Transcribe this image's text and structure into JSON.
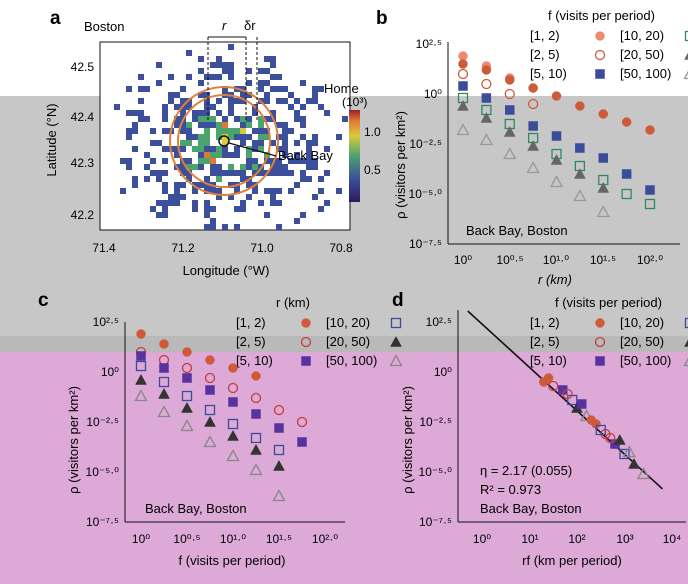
{
  "panels": [
    {
      "id": "a",
      "letter": "a"
    },
    {
      "id": "b",
      "letter": "b"
    },
    {
      "id": "c",
      "letter": "c"
    },
    {
      "id": "d",
      "letter": "d"
    }
  ],
  "colors": {
    "series_light": "#f08a6e",
    "series_mid": "#ce5a3c",
    "series_green": "#2e8a5e",
    "series_red": "#c63c3c",
    "series_gray": "#666666",
    "series_purple": "#5a32a0",
    "series_blue": "#3a4d9a",
    "series_lightgray": "#999999",
    "series_darkgray": "#333333",
    "ring": "#e0803a"
  },
  "map": {
    "city": "Boston",
    "xlabel": "Longitude (°W)",
    "ylabel": "Latitude (°N)",
    "xticks": [
      "71.4",
      "71.2",
      "71.0",
      "70.8"
    ],
    "yticks": [
      "42.5",
      "42.4",
      "42.3",
      "42.2"
    ],
    "r_label": "r",
    "dr_label": "δr",
    "annotation": "Back Bay",
    "colorbar_title": "Home",
    "colorbar_unit": "(10³)",
    "colorbar_ticks": [
      "1.0",
      "0.5"
    ],
    "colorbar_ticks_mid": "1.0"
  },
  "chart_data": [
    {
      "panel": "b",
      "type": "scatter",
      "title": "f (visits per period)",
      "xlabel": "r (km)",
      "ylabel": "ρ (visitors per km²)",
      "location_label": "Back Bay, Boston",
      "xlim_log10": [
        0,
        2
      ],
      "ylim_log10": [
        -7.5,
        2.5
      ],
      "xticks": [
        "10⁰",
        "10⁰·⁵",
        "10¹·⁰",
        "10¹·⁵",
        "10²·⁰"
      ],
      "yticks": [
        "10²·⁵",
        "10⁰",
        "10⁻²·⁵",
        "10⁻⁵·⁰",
        "10⁻⁷·⁵"
      ],
      "legend": [
        "[1, 2)",
        "[2, 5)",
        "[5, 10)",
        "[10, 20)",
        "[20, 50)",
        "[50, 100)"
      ],
      "x_log10": [
        0,
        0.25,
        0.5,
        0.75,
        1.0,
        1.25,
        1.5,
        1.75,
        2.0
      ],
      "series": [
        {
          "name": "[1, 2)",
          "marker": "circle-filled",
          "color": "#f08a6e",
          "y_log10": [
            1.9,
            1.4,
            0.8,
            0.3
          ]
        },
        {
          "name": "[2, 5)",
          "marker": "circle-open",
          "color": "#ce5a3c",
          "y_log10": [
            1.0,
            0.5,
            0.0,
            -0.5
          ]
        },
        {
          "name": "[5, 10)",
          "marker": "square-filled",
          "color": "#3a4d9a",
          "y_log10": [
            0.4,
            -0.2,
            -0.8,
            -1.6,
            -2.1,
            -2.7,
            -3.2,
            -4.0,
            -4.8
          ]
        },
        {
          "name": "[10, 20)",
          "marker": "square-open",
          "color": "#2e8a5e",
          "y_log10": [
            -0.2,
            -0.8,
            -1.5,
            -2.2,
            -3.0,
            -3.6,
            -4.3,
            -5.0,
            -5.5
          ]
        },
        {
          "name": "[20, 50)",
          "marker": "triangle-filled",
          "color": "#666666",
          "y_log10": [
            -0.6,
            -1.2,
            -1.9,
            -2.6,
            -3.3,
            -4.0,
            -4.7
          ]
        },
        {
          "name": "[50, 100)",
          "marker": "triangle-open",
          "color": "#999999",
          "y_log10": [
            -1.8,
            -2.3,
            -3.0,
            -3.7,
            -4.4,
            -5.1,
            -5.9
          ]
        }
      ],
      "upper_group": {
        "x_log10": [
          0,
          0.25,
          0.5,
          0.75,
          1.0,
          1.25,
          1.5,
          1.75,
          2.0
        ],
        "y_log10": [
          1.5,
          1.2,
          0.7,
          0.3,
          -0.1,
          -0.6,
          -1.0,
          -1.4,
          -1.8
        ],
        "color": "#ce5a3c"
      }
    },
    {
      "panel": "c",
      "type": "scatter",
      "title": "r (km)",
      "xlabel": "f (visits per period)",
      "ylabel": "ρ (visitors per km²)",
      "location_label": "Back Bay, Boston",
      "xlim_log10": [
        0,
        2
      ],
      "ylim_log10": [
        -7.5,
        2.5
      ],
      "xticks": [
        "10⁰",
        "10⁰·⁵",
        "10¹·⁰",
        "10¹·⁵",
        "10²·⁰"
      ],
      "yticks": [
        "10²·⁵",
        "10⁰",
        "10⁻²·⁵",
        "10⁻⁵·⁰",
        "10⁻⁷·⁵"
      ],
      "legend": [
        "[1, 2)",
        "[2, 5)",
        "[5, 10)",
        "[10, 20)",
        "[20, 50)",
        "[50, 100)"
      ],
      "x_log10": [
        0,
        0.25,
        0.5,
        0.75,
        1.0,
        1.25,
        1.5,
        1.75,
        2.0
      ],
      "series": [
        {
          "name": "[1, 2)",
          "marker": "circle-filled",
          "color": "#ce5a3c",
          "y_log10": [
            1.9,
            1.4,
            1.0,
            0.6,
            0.2,
            -0.2
          ]
        },
        {
          "name": "[2, 5)",
          "marker": "circle-open",
          "color": "#c63c3c",
          "y_log10": [
            1.0,
            0.6,
            0.2,
            -0.3,
            -0.8,
            -1.3,
            -1.9,
            -2.5
          ]
        },
        {
          "name": "[5, 10)",
          "marker": "square-filled",
          "color": "#5a32a0",
          "y_log10": [
            0.8,
            0.2,
            -0.3,
            -0.9,
            -1.5,
            -2.1,
            -2.8,
            -3.5
          ]
        },
        {
          "name": "[10, 20)",
          "marker": "square-open",
          "color": "#3a4d9a",
          "y_log10": [
            0.3,
            -0.5,
            -1.2,
            -1.9,
            -2.6,
            -3.3,
            -3.9
          ]
        },
        {
          "name": "[20, 50)",
          "marker": "triangle-filled",
          "color": "#333333",
          "y_log10": [
            -0.4,
            -1.1,
            -1.8,
            -2.5,
            -3.2,
            -3.9,
            -4.7
          ]
        },
        {
          "name": "[50, 100)",
          "marker": "triangle-open",
          "color": "#888888",
          "y_log10": [
            -1.2,
            -2.0,
            -2.7,
            -3.5,
            -4.2,
            -4.9,
            -6.2
          ]
        }
      ]
    },
    {
      "panel": "d",
      "type": "scatter",
      "title": "f (visits per period)",
      "xlabel": "rf (km per period)",
      "ylabel": "ρ (visitors per km²)",
      "location_label": "Back Bay, Boston",
      "eta": "η = 2.17 (0.055)",
      "r2": "R² = 0.973",
      "xlim_log10": [
        -0.3,
        4.2
      ],
      "ylim_log10": [
        -7.5,
        2.5
      ],
      "xticks": [
        "10⁰",
        "10¹",
        "10²",
        "10³",
        "10⁴"
      ],
      "yticks": [
        "10²·⁵",
        "10⁰",
        "10⁻²·⁵",
        "10⁻⁵·⁰",
        "10⁻⁷·⁵"
      ],
      "legend": [
        "[1, 2)",
        "[2, 5)",
        "[5, 10)",
        "[10, 20)",
        "[20, 50)",
        "[50, 100)"
      ],
      "fit": {
        "slope": -2.17,
        "intercept_log10": 2.4
      },
      "points": [
        {
          "x": 1.3,
          "y": -0.5
        },
        {
          "x": 1.5,
          "y": -0.7
        },
        {
          "x": 1.7,
          "y": -0.9
        },
        {
          "x": 1.9,
          "y": -1.4
        },
        {
          "x": 2.0,
          "y": -1.8
        },
        {
          "x": 2.2,
          "y": -2.2
        },
        {
          "x": 2.4,
          "y": -2.6
        },
        {
          "x": 2.6,
          "y": -3.1
        },
        {
          "x": 2.8,
          "y": -3.6
        },
        {
          "x": 3.0,
          "y": -4.1
        },
        {
          "x": 3.2,
          "y": -4.6
        },
        {
          "x": 3.4,
          "y": -5.1
        },
        {
          "x": 1.4,
          "y": -0.3
        },
        {
          "x": 1.8,
          "y": -1.1
        },
        {
          "x": 2.1,
          "y": -1.6
        },
        {
          "x": 2.5,
          "y": -2.9
        },
        {
          "x": 2.9,
          "y": -3.4
        },
        {
          "x": 3.1,
          "y": -4.0
        },
        {
          "x": 2.3,
          "y": -2.4
        },
        {
          "x": 2.7,
          "y": -3.3
        }
      ]
    }
  ]
}
